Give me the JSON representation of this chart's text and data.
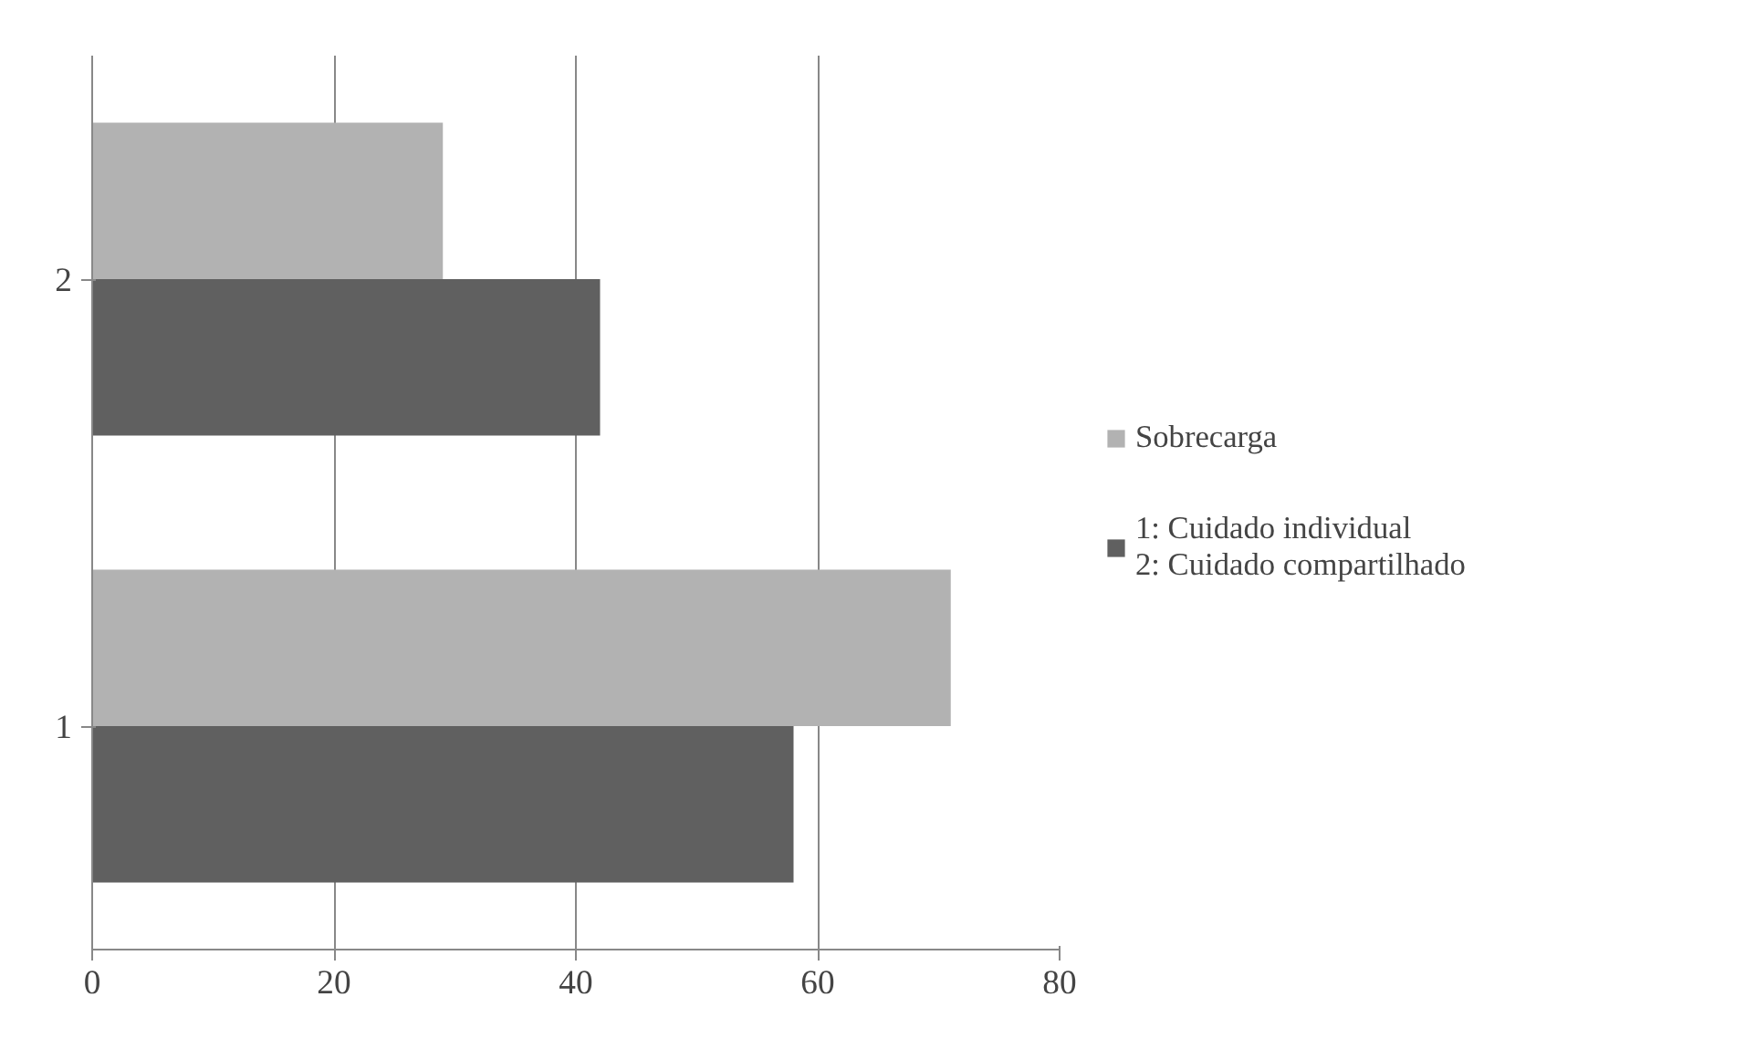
{
  "chart_data": {
    "type": "bar",
    "orientation": "horizontal",
    "categories": [
      "2",
      "1"
    ],
    "series": [
      {
        "name": "Sobrecarga",
        "color": "#b2b2b2",
        "values": [
          29,
          71
        ]
      },
      {
        "name": "1: Cuidado individual\n2: Cuidado compartilhado",
        "color": "#606060",
        "values": [
          42,
          58
        ]
      }
    ],
    "xlim": [
      0,
      80
    ],
    "xticks": [
      0,
      20,
      40,
      60,
      80
    ],
    "grid": "x",
    "legend": "right"
  }
}
